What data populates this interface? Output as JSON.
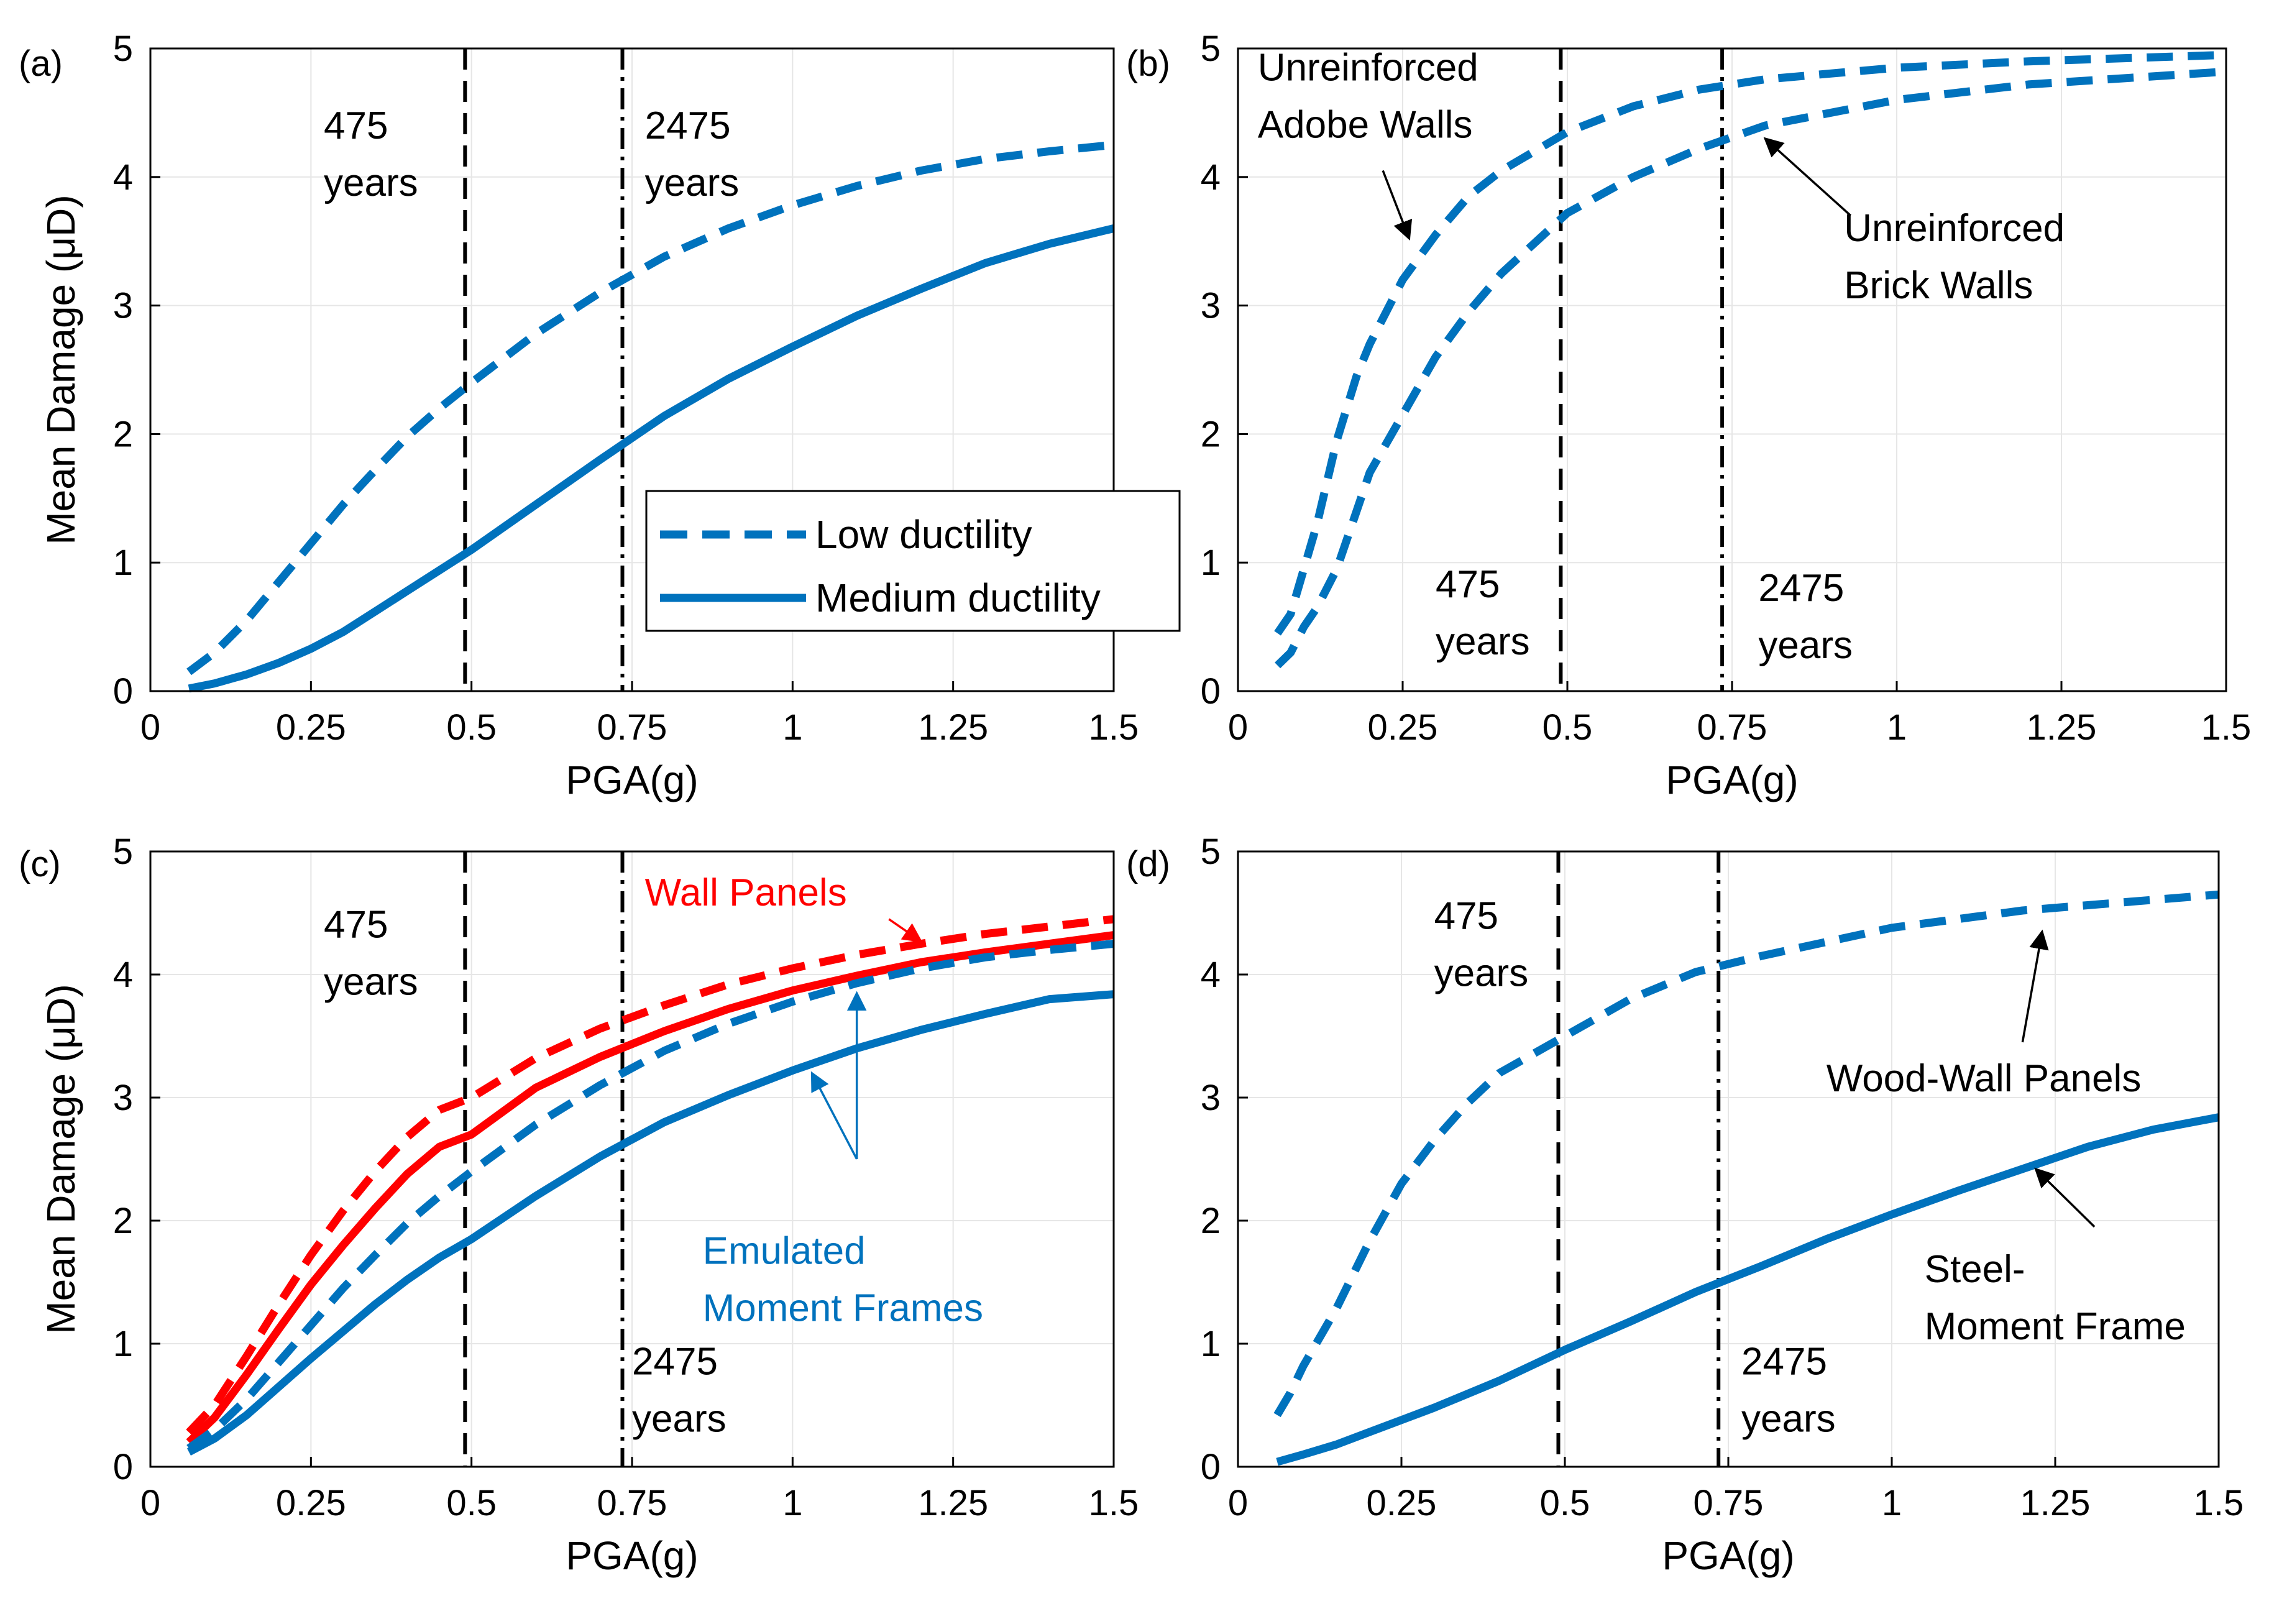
{
  "chart_data": [
    {
      "type": "line",
      "panel": "(a)",
      "xlabel": "PGA(g)",
      "ylabel": "Mean Damage (μD)",
      "xlim": [
        0,
        1.5
      ],
      "ylim": [
        0,
        5
      ],
      "xticks": [
        0,
        0.25,
        0.5,
        0.75,
        1,
        1.25,
        1.5
      ],
      "xtick_labels": [
        "0",
        "0.25",
        "0.5",
        "0.75",
        "1",
        "1.25",
        "1.5"
      ],
      "yticks": [
        0,
        1,
        2,
        3,
        4,
        5
      ],
      "ytick_labels": [
        "0",
        "1",
        "2",
        "3",
        "4",
        "5"
      ],
      "grid": true,
      "legend": {
        "position": "center-right",
        "entries": [
          "Low ductility",
          "Medium ductility"
        ]
      },
      "vlines": [
        {
          "x": 0.49,
          "style": "dashed",
          "label": [
            "475",
            "years"
          ],
          "label_pos": [
            0.27,
            4.3
          ]
        },
        {
          "x": 0.735,
          "style": "dashdot",
          "label": [
            "2475",
            "years"
          ],
          "label_pos": [
            0.77,
            4.3
          ]
        }
      ],
      "series": [
        {
          "name": "Low ductility",
          "color": "#0072BD",
          "style": "dashed",
          "x": [
            0.06,
            0.1,
            0.15,
            0.2,
            0.25,
            0.3,
            0.35,
            0.4,
            0.45,
            0.5,
            0.6,
            0.7,
            0.8,
            0.9,
            1.0,
            1.1,
            1.2,
            1.3,
            1.4,
            1.5
          ],
          "y": [
            0.15,
            0.3,
            0.55,
            0.85,
            1.15,
            1.45,
            1.72,
            1.98,
            2.2,
            2.4,
            2.78,
            3.1,
            3.38,
            3.6,
            3.78,
            3.93,
            4.05,
            4.14,
            4.2,
            4.25
          ]
        },
        {
          "name": "Medium ductility",
          "color": "#0072BD",
          "style": "solid",
          "x": [
            0.06,
            0.1,
            0.15,
            0.2,
            0.25,
            0.3,
            0.35,
            0.4,
            0.45,
            0.5,
            0.6,
            0.7,
            0.8,
            0.9,
            1.0,
            1.1,
            1.2,
            1.3,
            1.4,
            1.5
          ],
          "y": [
            0.02,
            0.06,
            0.13,
            0.22,
            0.33,
            0.46,
            0.62,
            0.78,
            0.94,
            1.1,
            1.45,
            1.8,
            2.14,
            2.43,
            2.68,
            2.92,
            3.13,
            3.33,
            3.48,
            3.6
          ]
        }
      ],
      "annotations": []
    },
    {
      "type": "line",
      "panel": "(b)",
      "xlabel": "PGA(g)",
      "ylabel": "",
      "xlim": [
        0,
        1.5
      ],
      "ylim": [
        0,
        5
      ],
      "xticks": [
        0,
        0.25,
        0.5,
        0.75,
        1,
        1.25,
        1.5
      ],
      "xtick_labels": [
        "0",
        "0.25",
        "0.5",
        "0.75",
        "1",
        "1.25",
        "1.5"
      ],
      "yticks": [
        0,
        1,
        2,
        3,
        4,
        5
      ],
      "ytick_labels": [
        "0",
        "1",
        "2",
        "3",
        "4",
        "5"
      ],
      "grid": true,
      "vlines": [
        {
          "x": 0.49,
          "style": "dashed",
          "label": [
            "475",
            "years"
          ],
          "label_pos": [
            0.3,
            0.73
          ]
        },
        {
          "x": 0.735,
          "style": "dashdot",
          "label": [
            "2475",
            "years"
          ],
          "label_pos": [
            0.79,
            0.7
          ]
        }
      ],
      "series": [
        {
          "name": "Unreinforced Adobe Walls",
          "color": "#0072BD",
          "style": "dashed",
          "x": [
            0.06,
            0.08,
            0.1,
            0.12,
            0.15,
            0.18,
            0.2,
            0.25,
            0.3,
            0.35,
            0.4,
            0.5,
            0.6,
            0.7,
            0.8,
            1.0,
            1.2,
            1.5
          ],
          "y": [
            0.45,
            0.6,
            0.95,
            1.3,
            1.95,
            2.45,
            2.7,
            3.2,
            3.55,
            3.85,
            4.05,
            4.35,
            4.55,
            4.68,
            4.76,
            4.85,
            4.9,
            4.95
          ]
        },
        {
          "name": "Unreinforced Brick Walls",
          "color": "#0072BD",
          "style": "dashed",
          "x": [
            0.06,
            0.08,
            0.1,
            0.12,
            0.15,
            0.18,
            0.2,
            0.25,
            0.3,
            0.35,
            0.4,
            0.5,
            0.6,
            0.7,
            0.8,
            1.0,
            1.2,
            1.5
          ],
          "y": [
            0.2,
            0.3,
            0.5,
            0.65,
            0.95,
            1.4,
            1.7,
            2.15,
            2.6,
            2.95,
            3.25,
            3.72,
            4.0,
            4.22,
            4.4,
            4.6,
            4.72,
            4.82
          ]
        }
      ],
      "annotations": [
        {
          "text": [
            "Unreinforced",
            "Adobe Walls"
          ],
          "text_pos": [
            0.03,
            4.75
          ],
          "arrow_from": [
            0.22,
            4.05
          ],
          "arrow_to": [
            0.26,
            3.52
          ]
        },
        {
          "text": [
            "Unreinforced",
            "Brick Walls"
          ],
          "text_pos": [
            0.92,
            3.5
          ],
          "arrow_from": [
            0.93,
            3.7
          ],
          "arrow_to": [
            0.8,
            4.3
          ]
        }
      ]
    },
    {
      "type": "line",
      "panel": "(c)",
      "xlabel": "PGA(g)",
      "ylabel": "Mean Damage (μD)",
      "xlim": [
        0,
        1.5
      ],
      "ylim": [
        0,
        5
      ],
      "xticks": [
        0,
        0.25,
        0.5,
        0.75,
        1,
        1.25,
        1.5
      ],
      "xtick_labels": [
        "0",
        "0.25",
        "0.5",
        "0.75",
        "1",
        "1.25",
        "1.5"
      ],
      "yticks": [
        0,
        1,
        2,
        3,
        4,
        5
      ],
      "ytick_labels": [
        "0",
        "1",
        "2",
        "3",
        "4",
        "5"
      ],
      "grid": true,
      "vlines": [
        {
          "x": 0.49,
          "style": "dashed",
          "label": [
            "475",
            "years"
          ],
          "label_pos": [
            0.27,
            4.3
          ]
        },
        {
          "x": 0.735,
          "style": "dashdot",
          "label": [
            "2475",
            "years"
          ],
          "label_pos": [
            0.75,
            0.75
          ]
        }
      ],
      "series": [
        {
          "name": "Wall Panels (low ductility)",
          "color": "#FF0000",
          "style": "dashed",
          "x": [
            0.06,
            0.1,
            0.15,
            0.2,
            0.25,
            0.3,
            0.35,
            0.4,
            0.45,
            0.5,
            0.6,
            0.7,
            0.8,
            0.9,
            1.0,
            1.1,
            1.2,
            1.3,
            1.4,
            1.5
          ],
          "y": [
            0.28,
            0.5,
            0.9,
            1.32,
            1.72,
            2.08,
            2.4,
            2.68,
            2.9,
            3.0,
            3.32,
            3.56,
            3.75,
            3.92,
            4.05,
            4.16,
            4.25,
            4.33,
            4.39,
            4.45
          ]
        },
        {
          "name": "Wall Panels (medium ductility)",
          "color": "#FF0000",
          "style": "solid",
          "x": [
            0.06,
            0.1,
            0.15,
            0.2,
            0.25,
            0.3,
            0.35,
            0.4,
            0.45,
            0.5,
            0.6,
            0.7,
            0.8,
            0.9,
            1.0,
            1.1,
            1.2,
            1.3,
            1.4,
            1.5
          ],
          "y": [
            0.2,
            0.4,
            0.75,
            1.12,
            1.48,
            1.8,
            2.1,
            2.38,
            2.6,
            2.7,
            3.08,
            3.33,
            3.54,
            3.72,
            3.87,
            3.99,
            4.1,
            4.18,
            4.25,
            4.32
          ]
        },
        {
          "name": "Emulated Moment Frames (low ductility)",
          "color": "#0072BD",
          "style": "dashed",
          "x": [
            0.06,
            0.1,
            0.15,
            0.2,
            0.25,
            0.3,
            0.35,
            0.4,
            0.45,
            0.5,
            0.6,
            0.7,
            0.8,
            0.9,
            1.0,
            1.1,
            1.2,
            1.3,
            1.4,
            1.5
          ],
          "y": [
            0.15,
            0.3,
            0.55,
            0.85,
            1.15,
            1.45,
            1.72,
            1.98,
            2.2,
            2.4,
            2.78,
            3.1,
            3.38,
            3.6,
            3.78,
            3.93,
            4.05,
            4.14,
            4.2,
            4.25
          ]
        },
        {
          "name": "Emulated Moment Frames (medium ductility)",
          "color": "#0072BD",
          "style": "solid",
          "x": [
            0.06,
            0.1,
            0.15,
            0.2,
            0.25,
            0.3,
            0.35,
            0.4,
            0.45,
            0.5,
            0.6,
            0.7,
            0.8,
            0.9,
            1.0,
            1.1,
            1.2,
            1.3,
            1.4,
            1.5
          ],
          "y": [
            0.12,
            0.23,
            0.42,
            0.65,
            0.88,
            1.1,
            1.32,
            1.52,
            1.7,
            1.85,
            2.2,
            2.52,
            2.8,
            3.02,
            3.22,
            3.4,
            3.55,
            3.68,
            3.8,
            3.84
          ]
        }
      ],
      "annotations": [
        {
          "text": [
            "Wall Panels"
          ],
          "text_pos": [
            0.77,
            4.56
          ],
          "color": "#FF0000",
          "arrow_from": [
            1.15,
            4.45
          ],
          "arrow_to": [
            1.2,
            4.27
          ]
        },
        {
          "text": [
            "Emulated",
            "Moment Frames"
          ],
          "text_pos": [
            0.86,
            1.65
          ],
          "color": "#0072BD",
          "arrow_from": [
            1.1,
            2.5
          ],
          "arrow_to": [
            1.1,
            3.85
          ]
        },
        {
          "text": [],
          "text_pos": [
            0,
            0
          ],
          "color": "#0072BD",
          "arrow_from": [
            1.1,
            2.5
          ],
          "arrow_to": [
            1.03,
            3.2
          ]
        }
      ]
    },
    {
      "type": "line",
      "panel": "(d)",
      "xlabel": "PGA(g)",
      "ylabel": "",
      "xlim": [
        0,
        1.5
      ],
      "ylim": [
        0,
        5
      ],
      "xticks": [
        0,
        0.25,
        0.5,
        0.75,
        1,
        1.25,
        1.5
      ],
      "xtick_labels": [
        "0",
        "0.25",
        "0.5",
        "0.75",
        "1",
        "1.25",
        "1.5"
      ],
      "yticks": [
        0,
        1,
        2,
        3,
        4,
        5
      ],
      "ytick_labels": [
        "0",
        "1",
        "2",
        "3",
        "4",
        "5"
      ],
      "grid": true,
      "vlines": [
        {
          "x": 0.49,
          "style": "dashed",
          "label": [
            "475",
            "years"
          ],
          "label_pos": [
            0.3,
            4.37
          ]
        },
        {
          "x": 0.735,
          "style": "dashdot",
          "label": [
            "2475",
            "years"
          ],
          "label_pos": [
            0.77,
            0.75
          ]
        }
      ],
      "series": [
        {
          "name": "Wood-Wall Panels",
          "color": "#0072BD",
          "style": "dashed",
          "x": [
            0.06,
            0.08,
            0.1,
            0.15,
            0.2,
            0.25,
            0.3,
            0.35,
            0.4,
            0.45,
            0.5,
            0.6,
            0.7,
            0.8,
            1.0,
            1.2,
            1.5
          ],
          "y": [
            0.42,
            0.6,
            0.82,
            1.28,
            1.82,
            2.3,
            2.65,
            2.95,
            3.2,
            3.35,
            3.5,
            3.8,
            4.02,
            4.15,
            4.38,
            4.52,
            4.65
          ]
        },
        {
          "name": "Steel-Moment Frame",
          "color": "#0072BD",
          "style": "solid",
          "x": [
            0.06,
            0.1,
            0.15,
            0.2,
            0.25,
            0.3,
            0.4,
            0.5,
            0.6,
            0.7,
            0.8,
            0.9,
            1.0,
            1.1,
            1.2,
            1.3,
            1.4,
            1.5
          ],
          "y": [
            0.04,
            0.1,
            0.18,
            0.28,
            0.38,
            0.48,
            0.7,
            0.95,
            1.18,
            1.42,
            1.63,
            1.85,
            2.05,
            2.24,
            2.42,
            2.6,
            2.74,
            2.84
          ]
        }
      ],
      "annotations": [
        {
          "text": [
            "Wood-Wall Panels"
          ],
          "text_pos": [
            0.9,
            3.05
          ],
          "arrow_from": [
            1.2,
            3.45
          ],
          "arrow_to": [
            1.23,
            4.35
          ]
        },
        {
          "text": [
            "Steel-",
            "Moment Frame"
          ],
          "text_pos": [
            1.05,
            1.5
          ],
          "arrow_from": [
            1.31,
            1.95
          ],
          "arrow_to": [
            1.22,
            2.42
          ]
        }
      ]
    }
  ]
}
